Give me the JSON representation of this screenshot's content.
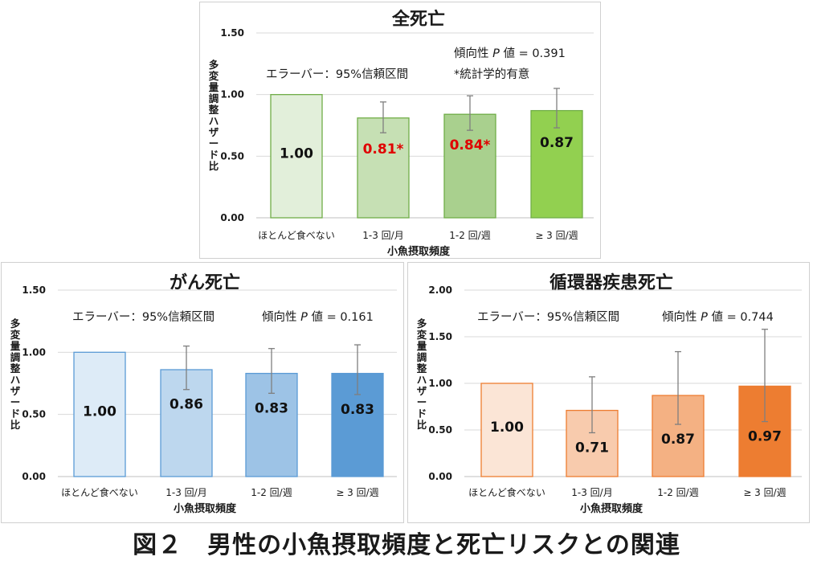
{
  "figure": {
    "caption": "図２　男性の小魚摂取頻度と死亡リスクとの関連"
  },
  "chart_data": [
    {
      "type": "bar",
      "title": "全死亡",
      "xlabel": "小魚摂取頻度",
      "ylabel": "多変量調整ハザード比",
      "ylim": [
        0,
        1.5
      ],
      "yticks": [
        "0.00",
        "0.50",
        "1.00",
        "1.50"
      ],
      "categories": [
        "ほとんど食べない",
        "1-3 回/月",
        "1-2 回/週",
        "≥ 3 回/週"
      ],
      "values": [
        1.0,
        0.81,
        0.84,
        0.87
      ],
      "value_labels": [
        "1.00",
        "0.81*",
        "0.84*",
        "0.87"
      ],
      "value_label_colors": [
        "#111111",
        "#e00000",
        "#e00000",
        "#111111"
      ],
      "error_bars": [
        null,
        [
          0.69,
          0.94
        ],
        [
          0.71,
          0.99
        ],
        [
          0.73,
          1.05
        ]
      ],
      "bar_fills": [
        "#e2efda",
        "#c6e0b4",
        "#a9d08e",
        "#92d050"
      ],
      "bar_strokes": [
        "#70ad47",
        "#70ad47",
        "#70ad47",
        "#70ad47"
      ],
      "annotations": [
        "エラーバー：95%信頼区間",
        "傾向性 P 値 = 0.391",
        "*統計学的有意"
      ]
    },
    {
      "type": "bar",
      "title": "がん死亡",
      "xlabel": "小魚摂取頻度",
      "ylabel": "多変量調整ハザード比",
      "ylim": [
        0,
        1.5
      ],
      "yticks": [
        "0.00",
        "0.50",
        "1.00",
        "1.50"
      ],
      "categories": [
        "ほとんど食べない",
        "1-3 回/月",
        "1-2 回/週",
        "≥ 3 回/週"
      ],
      "values": [
        1.0,
        0.86,
        0.83,
        0.83
      ],
      "value_labels": [
        "1.00",
        "0.86",
        "0.83",
        "0.83"
      ],
      "value_label_colors": [
        "#111111",
        "#111111",
        "#111111",
        "#111111"
      ],
      "error_bars": [
        null,
        [
          0.7,
          1.05
        ],
        [
          0.67,
          1.03
        ],
        [
          0.66,
          1.06
        ]
      ],
      "bar_fills": [
        "#ddebf7",
        "#bdd7ee",
        "#9dc3e6",
        "#5b9bd5"
      ],
      "bar_strokes": [
        "#5b9bd5",
        "#5b9bd5",
        "#5b9bd5",
        "#5b9bd5"
      ],
      "annotations": [
        "エラーバー：95%信頼区間",
        "傾向性 P 値 = 0.161"
      ]
    },
    {
      "type": "bar",
      "title": "循環器疾患死亡",
      "xlabel": "小魚摂取頻度",
      "ylabel": "多変量調整ハザード比",
      "ylim": [
        0,
        2.0
      ],
      "yticks": [
        "0.00",
        "0.50",
        "1.00",
        "1.50",
        "2.00"
      ],
      "categories": [
        "ほとんど食べない",
        "1-3 回/月",
        "1-2 回/週",
        "≥ 3 回/週"
      ],
      "values": [
        1.0,
        0.71,
        0.87,
        0.97
      ],
      "value_labels": [
        "1.00",
        "0.71",
        "0.87",
        "0.97"
      ],
      "value_label_colors": [
        "#111111",
        "#111111",
        "#111111",
        "#111111"
      ],
      "error_bars": [
        null,
        [
          0.47,
          1.07
        ],
        [
          0.56,
          1.34
        ],
        [
          0.59,
          1.58
        ]
      ],
      "bar_fills": [
        "#fbe5d6",
        "#f8cbad",
        "#f4b183",
        "#ed7d31"
      ],
      "bar_strokes": [
        "#ed7d31",
        "#ed7d31",
        "#ed7d31",
        "#ed7d31"
      ],
      "annotations": [
        "エラーバー：95%信頼区間",
        "傾向性 P 値 = 0.744"
      ]
    }
  ]
}
